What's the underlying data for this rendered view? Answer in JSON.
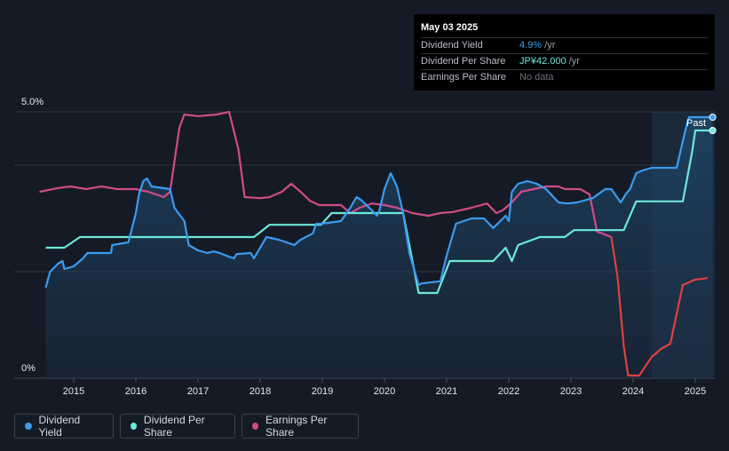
{
  "tooltip": {
    "date": "May 03 2025",
    "rows": [
      {
        "label": "Dividend Yield",
        "value": "4.9%",
        "unit": " /yr",
        "color": "#3b9bf0"
      },
      {
        "label": "Dividend Per Share",
        "value": "JP¥42.000",
        "unit": " /yr",
        "color": "#6de8d8"
      },
      {
        "label": "Earnings Per Share",
        "value": "No data",
        "unit": "",
        "color": "#6b717b"
      }
    ]
  },
  "past_label": "Past",
  "legend": [
    {
      "label": "Dividend Yield",
      "color": "#3b9bf0"
    },
    {
      "label": "Dividend Per Share",
      "color": "#6de8d8"
    },
    {
      "label": "Earnings Per Share",
      "color": "#d04b88"
    }
  ],
  "chart_data": {
    "type": "line",
    "y_axis": {
      "min": 0,
      "max": 5.0,
      "tick_labels": [
        "5.0%",
        "0%"
      ],
      "unit": "%"
    },
    "x_axis": {
      "min": 2014.5,
      "max": 2025.33,
      "tick_labels": [
        "2015",
        "2016",
        "2017",
        "2018",
        "2019",
        "2020",
        "2021",
        "2022",
        "2023",
        "2024",
        "2025"
      ]
    },
    "grid": true,
    "legend_position": "bottom-left",
    "series": [
      {
        "name": "Dividend Yield",
        "color": "#3b9bf0",
        "area": true,
        "points": [
          [
            2014.55,
            1.7
          ],
          [
            2014.62,
            2.0
          ],
          [
            2014.75,
            2.15
          ],
          [
            2014.82,
            2.2
          ],
          [
            2014.85,
            2.05
          ],
          [
            2015.0,
            2.1
          ],
          [
            2015.15,
            2.25
          ],
          [
            2015.22,
            2.35
          ],
          [
            2015.6,
            2.35
          ],
          [
            2015.62,
            2.5
          ],
          [
            2015.88,
            2.55
          ],
          [
            2016.0,
            3.1
          ],
          [
            2016.05,
            3.45
          ],
          [
            2016.12,
            3.7
          ],
          [
            2016.18,
            3.75
          ],
          [
            2016.25,
            3.6
          ],
          [
            2016.55,
            3.55
          ],
          [
            2016.62,
            3.2
          ],
          [
            2016.78,
            2.95
          ],
          [
            2016.85,
            2.5
          ],
          [
            2017.0,
            2.4
          ],
          [
            2017.15,
            2.35
          ],
          [
            2017.25,
            2.38
          ],
          [
            2017.35,
            2.35
          ],
          [
            2017.5,
            2.28
          ],
          [
            2017.58,
            2.25
          ],
          [
            2017.62,
            2.33
          ],
          [
            2017.85,
            2.35
          ],
          [
            2017.9,
            2.25
          ],
          [
            2018.05,
            2.55
          ],
          [
            2018.1,
            2.65
          ],
          [
            2018.3,
            2.6
          ],
          [
            2018.55,
            2.5
          ],
          [
            2018.65,
            2.6
          ],
          [
            2018.85,
            2.72
          ],
          [
            2018.9,
            2.9
          ],
          [
            2018.98,
            2.9
          ],
          [
            2019.3,
            2.95
          ],
          [
            2019.45,
            3.2
          ],
          [
            2019.55,
            3.4
          ],
          [
            2019.62,
            3.35
          ],
          [
            2019.8,
            3.15
          ],
          [
            2019.88,
            3.05
          ],
          [
            2019.92,
            3.15
          ],
          [
            2020.0,
            3.55
          ],
          [
            2020.1,
            3.85
          ],
          [
            2020.2,
            3.6
          ],
          [
            2020.3,
            3.1
          ],
          [
            2020.4,
            2.35
          ],
          [
            2020.55,
            1.75
          ],
          [
            2020.6,
            1.78
          ],
          [
            2020.9,
            1.82
          ],
          [
            2021.0,
            2.3
          ],
          [
            2021.15,
            2.9
          ],
          [
            2021.4,
            3.0
          ],
          [
            2021.6,
            3.0
          ],
          [
            2021.75,
            2.82
          ],
          [
            2021.95,
            3.05
          ],
          [
            2022.0,
            2.95
          ],
          [
            2022.05,
            3.5
          ],
          [
            2022.15,
            3.65
          ],
          [
            2022.3,
            3.7
          ],
          [
            2022.45,
            3.65
          ],
          [
            2022.6,
            3.55
          ],
          [
            2022.8,
            3.3
          ],
          [
            2022.95,
            3.28
          ],
          [
            2023.1,
            3.3
          ],
          [
            2023.35,
            3.38
          ],
          [
            2023.55,
            3.55
          ],
          [
            2023.65,
            3.55
          ],
          [
            2023.8,
            3.3
          ],
          [
            2023.88,
            3.45
          ],
          [
            2023.95,
            3.55
          ],
          [
            2024.05,
            3.85
          ],
          [
            2024.15,
            3.9
          ],
          [
            2024.3,
            3.95
          ],
          [
            2024.7,
            3.95
          ],
          [
            2024.85,
            4.7
          ],
          [
            2024.9,
            4.9
          ],
          [
            2025.28,
            4.9
          ]
        ]
      },
      {
        "name": "Dividend Per Share",
        "color": "#6de8d8",
        "area": false,
        "points": [
          [
            2014.55,
            2.45
          ],
          [
            2014.85,
            2.45
          ],
          [
            2015.1,
            2.65
          ],
          [
            2016.5,
            2.65
          ],
          [
            2017.9,
            2.65
          ],
          [
            2018.15,
            2.88
          ],
          [
            2018.98,
            2.88
          ],
          [
            2019.15,
            3.1
          ],
          [
            2019.4,
            3.1
          ],
          [
            2020.3,
            3.1
          ],
          [
            2020.4,
            2.5
          ],
          [
            2020.55,
            1.6
          ],
          [
            2020.85,
            1.6
          ],
          [
            2021.05,
            2.2
          ],
          [
            2021.75,
            2.2
          ],
          [
            2021.95,
            2.45
          ],
          [
            2022.05,
            2.2
          ],
          [
            2022.15,
            2.5
          ],
          [
            2022.5,
            2.65
          ],
          [
            2022.9,
            2.65
          ],
          [
            2023.05,
            2.78
          ],
          [
            2023.85,
            2.78
          ],
          [
            2024.05,
            3.32
          ],
          [
            2024.8,
            3.32
          ],
          [
            2024.95,
            4.25
          ],
          [
            2025.0,
            4.65
          ],
          [
            2025.28,
            4.65
          ]
        ]
      },
      {
        "name": "Earnings Per Share",
        "color": "#d04b88",
        "area": false,
        "points": [
          [
            2014.45,
            3.5
          ],
          [
            2014.75,
            3.57
          ],
          [
            2014.95,
            3.6
          ],
          [
            2015.2,
            3.55
          ],
          [
            2015.45,
            3.6
          ],
          [
            2015.7,
            3.55
          ],
          [
            2016.0,
            3.55
          ],
          [
            2016.2,
            3.5
          ],
          [
            2016.45,
            3.4
          ],
          [
            2016.55,
            3.5
          ],
          [
            2016.7,
            4.7
          ],
          [
            2016.78,
            4.95
          ],
          [
            2017.0,
            4.92
          ],
          [
            2017.3,
            4.95
          ],
          [
            2017.5,
            5.0
          ],
          [
            2017.65,
            4.3
          ],
          [
            2017.75,
            3.4
          ],
          [
            2018.0,
            3.38
          ],
          [
            2018.15,
            3.4
          ],
          [
            2018.35,
            3.5
          ],
          [
            2018.5,
            3.65
          ],
          [
            2018.65,
            3.5
          ],
          [
            2018.8,
            3.33
          ],
          [
            2018.95,
            3.25
          ],
          [
            2019.3,
            3.25
          ],
          [
            2019.45,
            3.1
          ],
          [
            2019.6,
            3.2
          ],
          [
            2019.8,
            3.28
          ],
          [
            2020.0,
            3.25
          ],
          [
            2020.2,
            3.2
          ],
          [
            2020.45,
            3.1
          ],
          [
            2020.7,
            3.05
          ],
          [
            2020.9,
            3.1
          ],
          [
            2021.1,
            3.12
          ],
          [
            2021.4,
            3.2
          ],
          [
            2021.65,
            3.28
          ],
          [
            2021.8,
            3.1
          ],
          [
            2021.9,
            3.15
          ],
          [
            2022.05,
            3.3
          ],
          [
            2022.2,
            3.5
          ],
          [
            2022.4,
            3.55
          ],
          [
            2022.6,
            3.6
          ],
          [
            2022.8,
            3.6
          ],
          [
            2022.9,
            3.55
          ],
          [
            2023.0,
            3.55
          ],
          [
            2023.15,
            3.55
          ],
          [
            2023.3,
            3.45
          ],
          [
            2023.42,
            2.75
          ],
          [
            2023.5,
            2.72
          ],
          [
            2023.65,
            2.65
          ],
          [
            2023.75,
            1.9
          ],
          [
            2023.85,
            0.6
          ],
          [
            2023.92,
            0.05
          ],
          [
            2024.1,
            0.05
          ],
          [
            2024.3,
            0.4
          ],
          [
            2024.45,
            0.55
          ],
          [
            2024.6,
            0.65
          ],
          [
            2024.7,
            1.2
          ],
          [
            2024.8,
            1.75
          ],
          [
            2025.0,
            1.85
          ],
          [
            2025.2,
            1.88
          ]
        ]
      }
    ]
  }
}
